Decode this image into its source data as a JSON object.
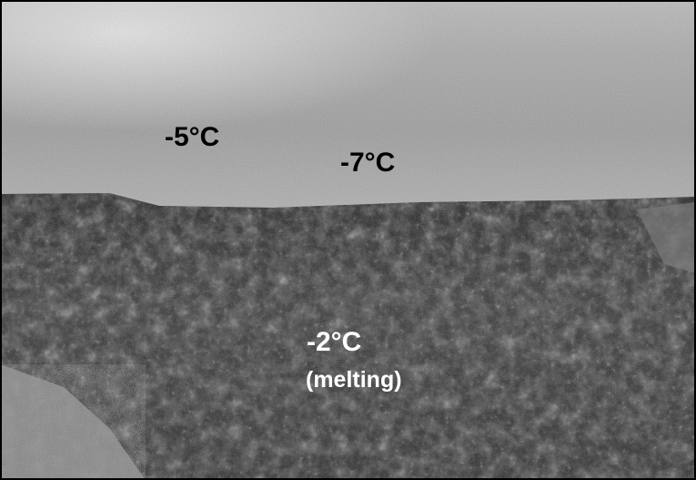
{
  "photo": {
    "subject": "snow surface over dark granular melting ice/slush",
    "tone": "grayscale"
  },
  "labels": {
    "snow_left": "-5°C",
    "snow_right": "-7°C",
    "slush": "-2°C",
    "slush_note": "(melting)"
  },
  "colors": {
    "snow_light": "#c8c8c8",
    "snow_mid": "#9a9a9a",
    "slush_dark": "#2a2a2a",
    "border": "#000000"
  }
}
